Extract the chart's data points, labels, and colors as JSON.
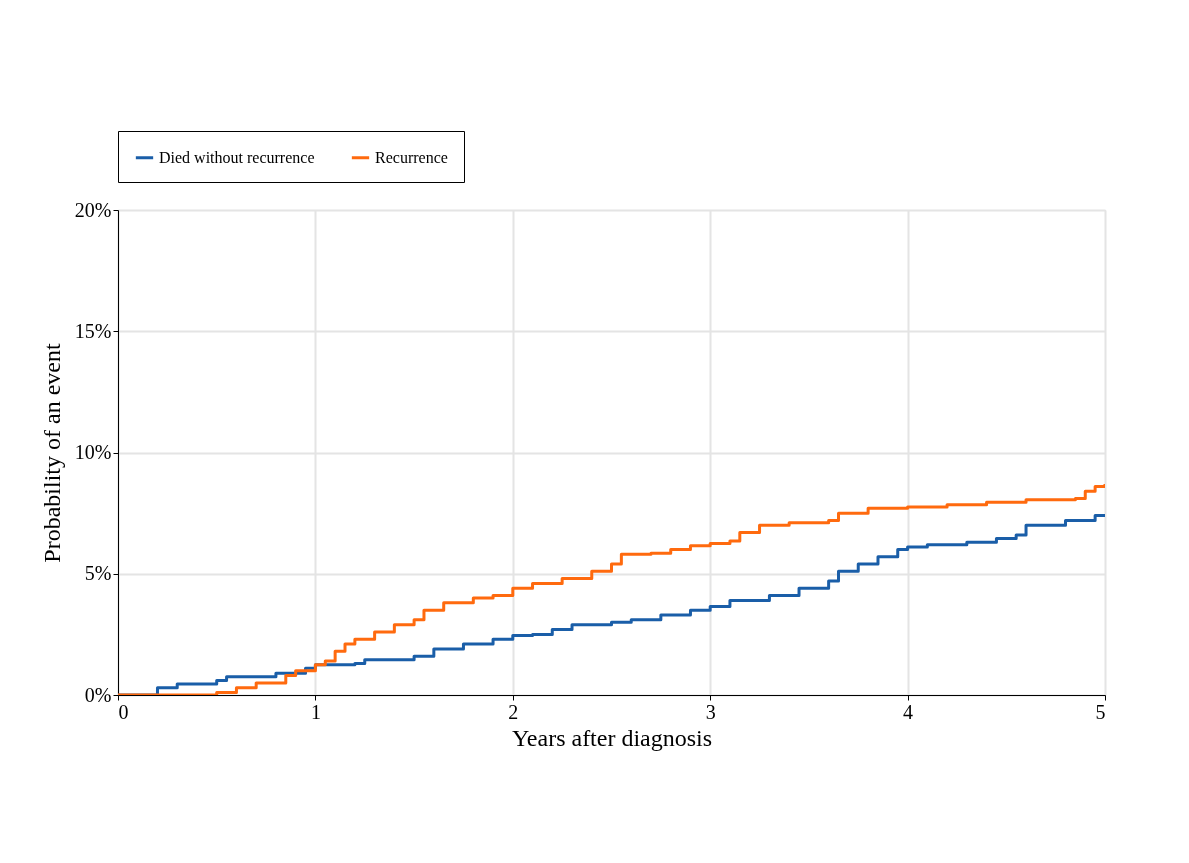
{
  "chart_data": {
    "type": "step",
    "xlabel": "Years after diagnosis",
    "ylabel": "Probability of an event",
    "xlim": [
      0,
      5
    ],
    "xticks": [
      0,
      1,
      2,
      3,
      4,
      5
    ],
    "ylim": [
      0,
      20
    ],
    "yticks": [
      {
        "value": 0,
        "label": "0%"
      },
      {
        "value": 5,
        "label": "5%"
      },
      {
        "value": 10,
        "label": "10%"
      },
      {
        "value": 15,
        "label": "15%"
      },
      {
        "value": 20,
        "label": "20%"
      }
    ],
    "grid": true,
    "legend": "top",
    "line_style": "solid",
    "series": [
      {
        "name": "Died without recurrence",
        "color": "#1a5ea8",
        "x": [
          0,
          0.1,
          0.2,
          0.3,
          0.5,
          0.55,
          0.8,
          0.95,
          1.0,
          1.2,
          1.25,
          1.5,
          1.6,
          1.75,
          1.9,
          2.0,
          2.1,
          2.2,
          2.3,
          2.5,
          2.6,
          2.75,
          2.9,
          3.0,
          3.1,
          3.3,
          3.45,
          3.6,
          3.65,
          3.75,
          3.85,
          3.95,
          4.0,
          4.1,
          4.3,
          4.45,
          4.55,
          4.6,
          4.8,
          4.95,
          5
        ],
        "values": [
          0,
          0,
          0.3,
          0.45,
          0.6,
          0.75,
          0.9,
          1.1,
          1.25,
          1.3,
          1.45,
          1.6,
          1.9,
          2.1,
          2.3,
          2.45,
          2.5,
          2.7,
          2.9,
          3.0,
          3.1,
          3.3,
          3.5,
          3.65,
          3.9,
          4.1,
          4.4,
          4.7,
          5.1,
          5.4,
          5.7,
          6.0,
          6.1,
          6.2,
          6.3,
          6.45,
          6.6,
          7.0,
          7.2,
          7.4,
          7.45
        ]
      },
      {
        "name": "Recurrence",
        "color": "#ff6a0e",
        "x": [
          0,
          0.3,
          0.5,
          0.6,
          0.7,
          0.85,
          0.9,
          1.0,
          1.05,
          1.1,
          1.15,
          1.2,
          1.3,
          1.4,
          1.5,
          1.55,
          1.65,
          1.8,
          1.9,
          2.0,
          2.1,
          2.25,
          2.4,
          2.5,
          2.55,
          2.7,
          2.8,
          2.9,
          3.0,
          3.1,
          3.15,
          3.25,
          3.4,
          3.6,
          3.65,
          3.8,
          4.0,
          4.2,
          4.4,
          4.6,
          4.85,
          4.9,
          4.95,
          5
        ],
        "values": [
          0,
          0,
          0.1,
          0.3,
          0.5,
          0.8,
          1.0,
          1.25,
          1.4,
          1.8,
          2.1,
          2.3,
          2.6,
          2.9,
          3.1,
          3.5,
          3.8,
          4.0,
          4.1,
          4.4,
          4.6,
          4.8,
          5.1,
          5.4,
          5.8,
          5.85,
          6.0,
          6.15,
          6.25,
          6.35,
          6.7,
          7.0,
          7.1,
          7.2,
          7.5,
          7.7,
          7.75,
          7.85,
          7.95,
          8.05,
          8.1,
          8.4,
          8.6,
          8.7
        ]
      }
    ]
  }
}
